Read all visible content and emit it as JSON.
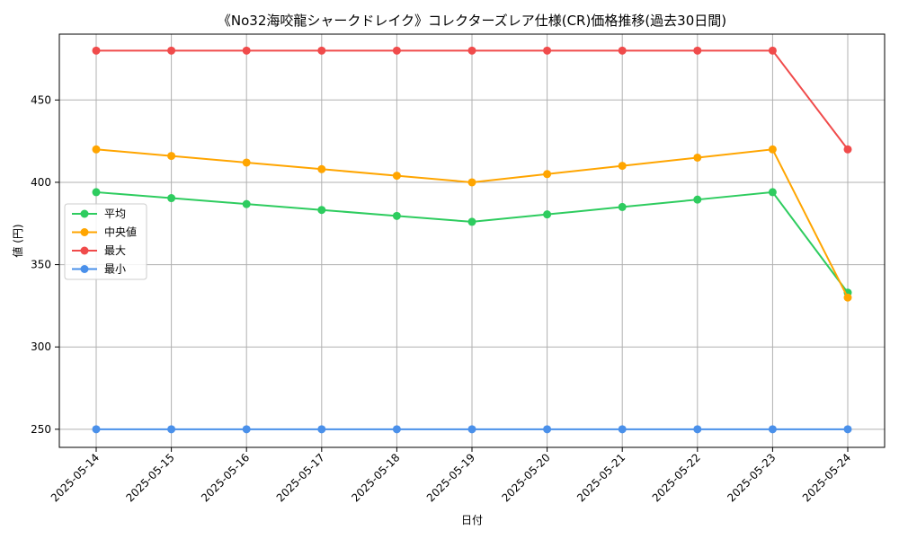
{
  "chart_data": {
    "type": "line",
    "title": "《No32海咬龍シャークドレイク》コレクターズレア仕様(CR)価格推移(過去30日間)",
    "xlabel": "日付",
    "ylabel": "値 (円)",
    "categories": [
      "2025-05-14",
      "2025-05-15",
      "2025-05-16",
      "2025-05-17",
      "2025-05-18",
      "2025-05-19",
      "2025-05-20",
      "2025-05-21",
      "2025-05-22",
      "2025-05-23",
      "2025-05-24"
    ],
    "ylim": [
      239,
      490
    ],
    "yticks": [
      250,
      300,
      350,
      400,
      450
    ],
    "grid": true,
    "legend_position": "center-left",
    "series": [
      {
        "name": "平均",
        "color": "#2ecc5f",
        "values": [
          394,
          390.4,
          386.8,
          383.2,
          379.6,
          376,
          380.5,
          385,
          389.5,
          394,
          333
        ]
      },
      {
        "name": "中央値",
        "color": "#ffa500",
        "values": [
          420,
          416,
          412,
          408,
          404,
          400,
          405,
          410,
          415,
          420,
          330
        ]
      },
      {
        "name": "最大",
        "color": "#f04b4b",
        "values": [
          480,
          480,
          480,
          480,
          480,
          480,
          480,
          480,
          480,
          480,
          420
        ]
      },
      {
        "name": "最小",
        "color": "#4a90ea",
        "values": [
          250,
          250,
          250,
          250,
          250,
          250,
          250,
          250,
          250,
          250,
          250
        ]
      }
    ]
  }
}
